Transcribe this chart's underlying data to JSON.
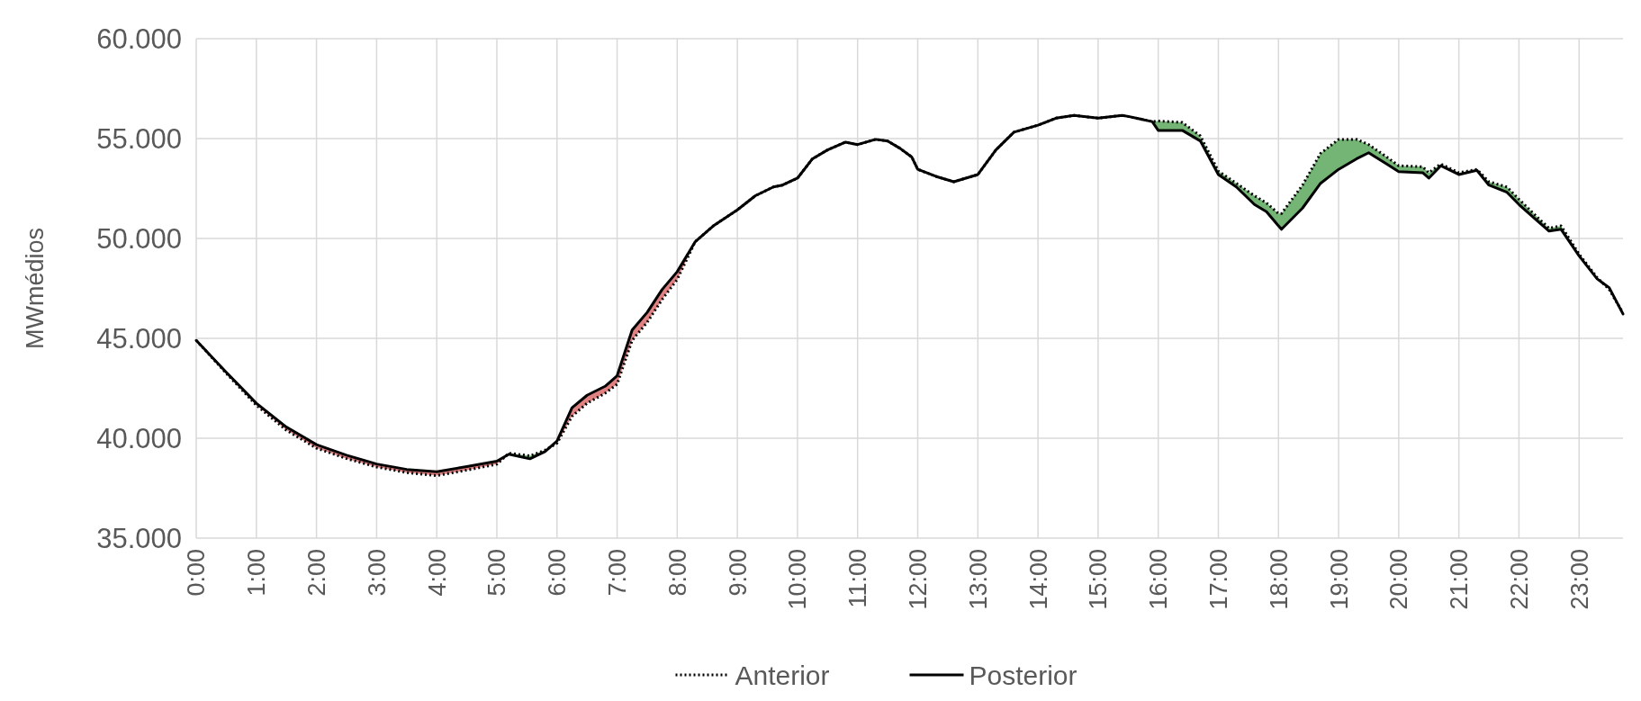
{
  "chart_data": {
    "type": "line",
    "ylabel": "MWmédios",
    "legend": "bottom",
    "grid": true,
    "x": [
      0,
      0.5,
      1,
      1.5,
      2,
      2.5,
      3,
      3.5,
      4,
      4.5,
      5,
      5.2,
      5.55,
      5.8,
      6,
      6.25,
      6.5,
      6.8,
      7,
      7.25,
      7.5,
      7.75,
      8,
      8.3,
      8.6,
      9,
      9.3,
      9.6,
      9.75,
      10,
      10.25,
      10.5,
      10.8,
      11,
      11.3,
      11.5,
      11.7,
      11.9,
      12,
      12.3,
      12.6,
      13,
      13.3,
      13.6,
      14,
      14.3,
      14.6,
      15,
      15.4,
      15.5,
      15.9,
      16,
      16.4,
      16.7,
      17,
      17.3,
      17.6,
      17.8,
      18,
      18.05,
      18.4,
      18.7,
      19,
      19.3,
      19.5,
      19.8,
      20,
      20.4,
      20.5,
      20.7,
      21,
      21.3,
      21.5,
      21.8,
      22,
      22.3,
      22.5,
      22.7,
      23,
      23.3,
      23.5,
      23.73
    ],
    "series": [
      {
        "name": "Anterior",
        "color": "#000000",
        "line_style": "dotted",
        "values": [
          44900,
          43250,
          41650,
          40400,
          39500,
          38980,
          38560,
          38280,
          38130,
          38400,
          38700,
          39250,
          39120,
          39400,
          39750,
          41100,
          41750,
          42250,
          42700,
          44900,
          45800,
          46950,
          47950,
          49840,
          50630,
          51430,
          52140,
          52580,
          52670,
          53020,
          53990,
          54430,
          54820,
          54700,
          54960,
          54880,
          54520,
          54080,
          53460,
          53110,
          52840,
          53200,
          54430,
          55320,
          55670,
          56020,
          56160,
          56020,
          56160,
          56110,
          55850,
          55880,
          55810,
          55140,
          53370,
          52760,
          52140,
          51780,
          51250,
          51250,
          52670,
          54260,
          54960,
          54960,
          54700,
          54080,
          53640,
          53590,
          53290,
          53730,
          53290,
          53460,
          52840,
          52580,
          51960,
          51080,
          50510,
          50630,
          49220,
          48040,
          47450,
          46270
        ]
      },
      {
        "name": "Posterior",
        "color": "#000000",
        "line_style": "solid",
        "values": [
          44900,
          43300,
          41750,
          40560,
          39680,
          39150,
          38710,
          38440,
          38320,
          38580,
          38850,
          39200,
          38970,
          39330,
          39860,
          41530,
          42150,
          42600,
          43130,
          45420,
          46300,
          47450,
          48340,
          49840,
          50630,
          51430,
          52140,
          52580,
          52670,
          53020,
          53990,
          54430,
          54820,
          54700,
          54960,
          54880,
          54520,
          54080,
          53460,
          53110,
          52840,
          53200,
          54430,
          55320,
          55670,
          56020,
          56160,
          56020,
          56160,
          56110,
          55850,
          55410,
          55410,
          54880,
          53200,
          52580,
          51700,
          51340,
          50630,
          50460,
          51520,
          52760,
          53460,
          53990,
          54290,
          53730,
          53340,
          53290,
          53020,
          53640,
          53200,
          53410,
          52670,
          52310,
          51700,
          50900,
          50370,
          50460,
          49130,
          47980,
          47540,
          46220
        ]
      }
    ],
    "xlim": [
      0,
      23.73
    ],
    "xticks": [
      {
        "value": 0,
        "label": "0:00"
      },
      {
        "value": 1,
        "label": "1:00"
      },
      {
        "value": 2,
        "label": "2:00"
      },
      {
        "value": 3,
        "label": "3:00"
      },
      {
        "value": 4,
        "label": "4:00"
      },
      {
        "value": 5,
        "label": "5:00"
      },
      {
        "value": 6,
        "label": "6:00"
      },
      {
        "value": 7,
        "label": "7:00"
      },
      {
        "value": 8,
        "label": "8:00"
      },
      {
        "value": 9,
        "label": "9:00"
      },
      {
        "value": 10,
        "label": "10:00"
      },
      {
        "value": 11,
        "label": "11:00"
      },
      {
        "value": 12,
        "label": "12:00"
      },
      {
        "value": 13,
        "label": "13:00"
      },
      {
        "value": 14,
        "label": "14:00"
      },
      {
        "value": 15,
        "label": "15:00"
      },
      {
        "value": 16,
        "label": "16:00"
      },
      {
        "value": 17,
        "label": "17:00"
      },
      {
        "value": 18,
        "label": "18:00"
      },
      {
        "value": 19,
        "label": "19:00"
      },
      {
        "value": 20,
        "label": "20:00"
      },
      {
        "value": 21,
        "label": "21:00"
      },
      {
        "value": 22,
        "label": "22:00"
      },
      {
        "value": 23,
        "label": "23:00"
      }
    ],
    "ylim": [
      35000,
      60000
    ],
    "yticks": [
      {
        "value": 35000,
        "label": "35.000"
      },
      {
        "value": 40000,
        "label": "40.000"
      },
      {
        "value": 45000,
        "label": "45.000"
      },
      {
        "value": 50000,
        "label": "50.000"
      },
      {
        "value": 55000,
        "label": "55.000"
      },
      {
        "value": 60000,
        "label": "60.000"
      }
    ]
  }
}
